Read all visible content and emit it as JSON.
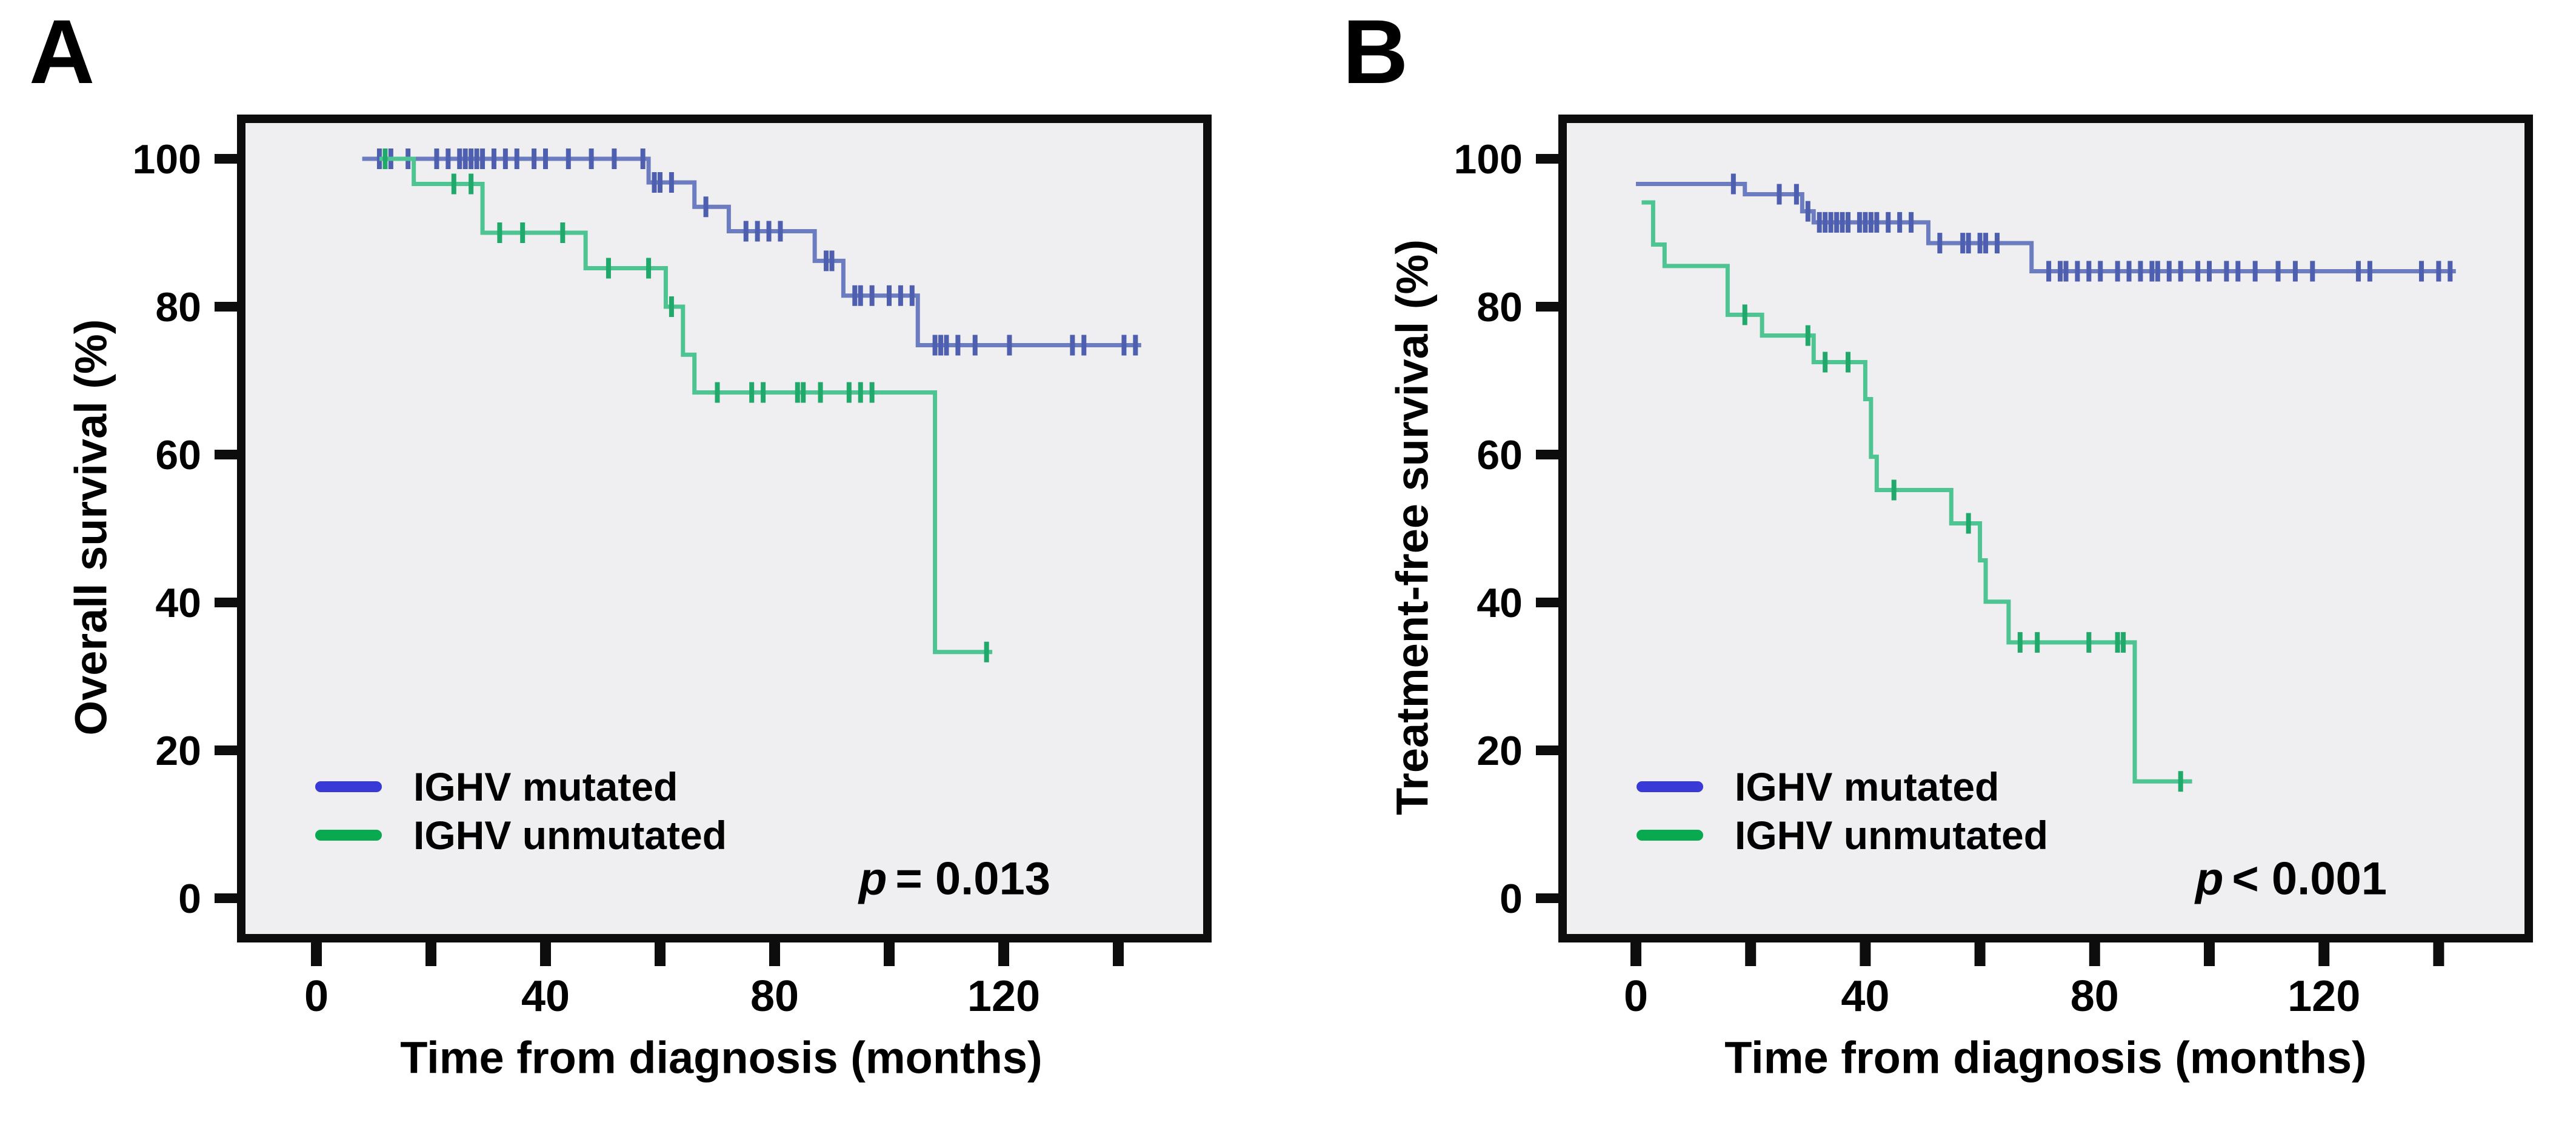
{
  "figure": {
    "panels": [
      {
        "label": "A",
        "y_axis_title": "Overall survival (%)",
        "x_axis_title": "Time from diagnosis (months)",
        "p_label": "p",
        "p_rest": "= 0.013",
        "legend": [
          {
            "label": "IGHV mutated",
            "color": "#3839d6"
          },
          {
            "label": "IGHV unmutated",
            "color": "#09a94f"
          }
        ]
      },
      {
        "label": "B",
        "y_axis_title": "Treatment-free survival (%)",
        "x_axis_title": "Time from diagnosis (months)",
        "p_label": "p",
        "p_rest": "< 0.001",
        "legend": [
          {
            "label": "IGHV mutated",
            "color": "#3839d6"
          },
          {
            "label": "IGHV unmutated",
            "color": "#09a94f"
          }
        ]
      }
    ],
    "plot_background": "#efeef0",
    "axis_color": "#0d0d0d"
  },
  "chart_data": [
    {
      "type": "line",
      "subtype": "kaplan-meier-step",
      "title": "Overall survival by IGHV mutation status",
      "xlabel": "Time from diagnosis (months)",
      "ylabel": "Overall survival (%)",
      "p_value": "p = 0.013",
      "xlim": [
        -13,
        155
      ],
      "ylim": [
        0,
        100
      ],
      "x_ticks_labeled": [
        0,
        40,
        80,
        120
      ],
      "x_ticks_minor": [
        20,
        60,
        100,
        140
      ],
      "y_ticks": [
        0,
        20,
        40,
        60,
        80,
        100
      ],
      "grid": false,
      "legend_position": "lower-left",
      "series": [
        {
          "name": "IGHV mutated",
          "color": "#6b7cc0",
          "censor_color": "#4d5fae",
          "steps": [
            [
              8,
              100
            ],
            [
              58,
              96.8
            ],
            [
              66,
              93.5
            ],
            [
              72,
              90.2
            ],
            [
              87,
              86.2
            ],
            [
              92,
              81.5
            ],
            [
              105,
              74.8
            ]
          ],
          "end_x": 144,
          "censors": [
            [
              11,
              100
            ],
            [
              13,
              100
            ],
            [
              16,
              100
            ],
            [
              21,
              100
            ],
            [
              23,
              100
            ],
            [
              25,
              100
            ],
            [
              26,
              100
            ],
            [
              27,
              100
            ],
            [
              28,
              100
            ],
            [
              29,
              100
            ],
            [
              31,
              100
            ],
            [
              33,
              100
            ],
            [
              35,
              100
            ],
            [
              38,
              100
            ],
            [
              40,
              100
            ],
            [
              44,
              100
            ],
            [
              48,
              100
            ],
            [
              52,
              100
            ],
            [
              57,
              100
            ],
            [
              59,
              96.8
            ],
            [
              60,
              96.8
            ],
            [
              62,
              96.8
            ],
            [
              68,
              93.5
            ],
            [
              75,
              90.2
            ],
            [
              77,
              90.2
            ],
            [
              79,
              90.2
            ],
            [
              81,
              90.2
            ],
            [
              89,
              86.2
            ],
            [
              90,
              86.2
            ],
            [
              94,
              81.5
            ],
            [
              95,
              81.5
            ],
            [
              97,
              81.5
            ],
            [
              100,
              81.5
            ],
            [
              102,
              81.5
            ],
            [
              104,
              81.5
            ],
            [
              108,
              74.8
            ],
            [
              109,
              74.8
            ],
            [
              110,
              74.8
            ],
            [
              112,
              74.8
            ],
            [
              115,
              74.8
            ],
            [
              121,
              74.8
            ],
            [
              132,
              74.8
            ],
            [
              134,
              74.8
            ],
            [
              141,
              74.8
            ],
            [
              143,
              74.8
            ]
          ]
        },
        {
          "name": "IGHV unmutated",
          "color": "#4ec492",
          "censor_color": "#21a86b",
          "steps": [
            [
              11,
              100
            ],
            [
              17,
              96.6
            ],
            [
              29,
              90.0
            ],
            [
              47,
              85.2
            ],
            [
              61,
              80.0
            ],
            [
              64,
              73.5
            ],
            [
              66,
              68.4
            ],
            [
              108,
              33.3
            ]
          ],
          "end_x": 118,
          "censors": [
            [
              12,
              100
            ],
            [
              24,
              96.6
            ],
            [
              27,
              96.6
            ],
            [
              32,
              90.0
            ],
            [
              36,
              90.0
            ],
            [
              43,
              90.0
            ],
            [
              51,
              85.2
            ],
            [
              58,
              85.2
            ],
            [
              62,
              80.0
            ],
            [
              70,
              68.4
            ],
            [
              76,
              68.4
            ],
            [
              78,
              68.4
            ],
            [
              84,
              68.4
            ],
            [
              85,
              68.4
            ],
            [
              88,
              68.4
            ],
            [
              93,
              68.4
            ],
            [
              95,
              68.4
            ],
            [
              97,
              68.4
            ],
            [
              117,
              33.3
            ]
          ]
        }
      ]
    },
    {
      "type": "line",
      "subtype": "kaplan-meier-step",
      "title": "Treatment-free survival by IGHV mutation status",
      "xlabel": "Time from diagnosis (months)",
      "ylabel": "Treatment-free survival (%)",
      "p_value": "p < 0.001",
      "xlim": [
        -13,
        155
      ],
      "ylim": [
        0,
        100
      ],
      "x_ticks_labeled": [
        0,
        40,
        80,
        120
      ],
      "x_ticks_minor": [
        20,
        60,
        100,
        140
      ],
      "y_ticks": [
        0,
        20,
        40,
        60,
        80,
        100
      ],
      "grid": false,
      "legend_position": "lower-left",
      "series": [
        {
          "name": "IGHV mutated",
          "color": "#6b7cc0",
          "censor_color": "#4d5fae",
          "steps": [
            [
              0,
              96.6
            ],
            [
              19,
              95.2
            ],
            [
              29,
              92.9
            ],
            [
              31,
              91.4
            ],
            [
              51,
              88.6
            ],
            [
              69,
              84.8
            ]
          ],
          "end_x": 143,
          "censors": [
            [
              17,
              96.6
            ],
            [
              25,
              95.2
            ],
            [
              28,
              95.2
            ],
            [
              30,
              92.9
            ],
            [
              32,
              91.4
            ],
            [
              33,
              91.4
            ],
            [
              34,
              91.4
            ],
            [
              35,
              91.4
            ],
            [
              36,
              91.4
            ],
            [
              37,
              91.4
            ],
            [
              39,
              91.4
            ],
            [
              40,
              91.4
            ],
            [
              41,
              91.4
            ],
            [
              42,
              91.4
            ],
            [
              44,
              91.4
            ],
            [
              46,
              91.4
            ],
            [
              48,
              91.4
            ],
            [
              53,
              88.6
            ],
            [
              57,
              88.6
            ],
            [
              58,
              88.6
            ],
            [
              60,
              88.6
            ],
            [
              61,
              88.6
            ],
            [
              63,
              88.6
            ],
            [
              72,
              84.8
            ],
            [
              74,
              84.8
            ],
            [
              75,
              84.8
            ],
            [
              77,
              84.8
            ],
            [
              79,
              84.8
            ],
            [
              81,
              84.8
            ],
            [
              84,
              84.8
            ],
            [
              86,
              84.8
            ],
            [
              88,
              84.8
            ],
            [
              90,
              84.8
            ],
            [
              91,
              84.8
            ],
            [
              93,
              84.8
            ],
            [
              95,
              84.8
            ],
            [
              98,
              84.8
            ],
            [
              100,
              84.8
            ],
            [
              103,
              84.8
            ],
            [
              105,
              84.8
            ],
            [
              108,
              84.8
            ],
            [
              112,
              84.8
            ],
            [
              115,
              84.8
            ],
            [
              118,
              84.8
            ],
            [
              126,
              84.8
            ],
            [
              128,
              84.8
            ],
            [
              137,
              84.8
            ],
            [
              140,
              84.8
            ],
            [
              142,
              84.8
            ]
          ]
        },
        {
          "name": "IGHV unmutated",
          "color": "#4ec492",
          "censor_color": "#21a86b",
          "steps": [
            [
              1,
              94.1
            ],
            [
              3,
              88.4
            ],
            [
              5,
              85.5
            ],
            [
              16,
              78.9
            ],
            [
              22,
              76.1
            ],
            [
              31,
              72.5
            ],
            [
              40,
              67.5
            ],
            [
              41,
              59.7
            ],
            [
              42,
              55.2
            ],
            [
              55,
              50.7
            ],
            [
              60,
              45.7
            ],
            [
              61,
              40.1
            ],
            [
              65,
              34.6
            ],
            [
              87,
              15.8
            ]
          ],
          "end_x": 97,
          "censors": [
            [
              19,
              78.9
            ],
            [
              30,
              76.1
            ],
            [
              33,
              72.5
            ],
            [
              37,
              72.5
            ],
            [
              45,
              55.2
            ],
            [
              58,
              50.7
            ],
            [
              67,
              34.6
            ],
            [
              70,
              34.6
            ],
            [
              79,
              34.6
            ],
            [
              84,
              34.6
            ],
            [
              85,
              34.6
            ],
            [
              95,
              15.8
            ]
          ]
        }
      ]
    }
  ]
}
